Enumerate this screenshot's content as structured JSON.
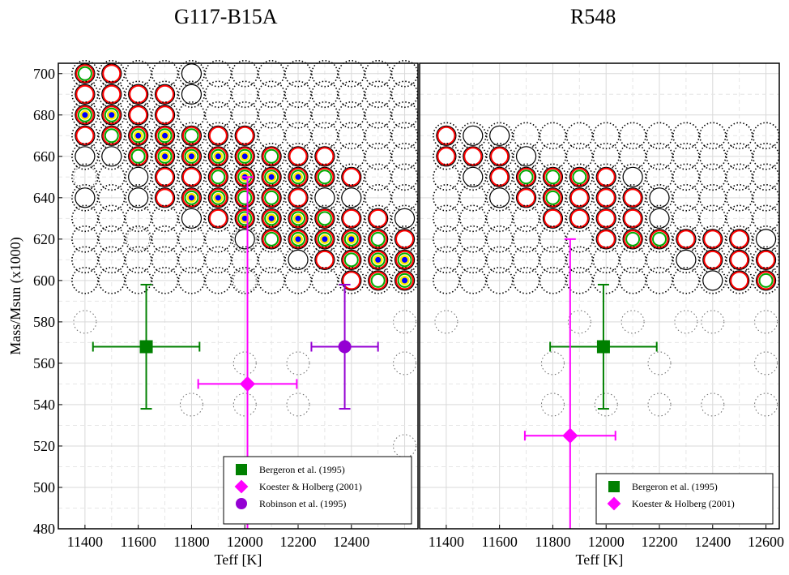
{
  "titles": {
    "left": "G117-B15A",
    "right": "R548"
  },
  "chart_data": [
    {
      "type": "scatter",
      "title": "G117-B15A",
      "xlabel": "Teff [K]",
      "ylabel": "Mass/Msun (x1000)",
      "xlim": [
        11300,
        12650
      ],
      "ylim": [
        480,
        705
      ],
      "xticks": [
        11400,
        11600,
        11800,
        12000,
        12200,
        12400
      ],
      "yticks": [
        480,
        500,
        520,
        540,
        560,
        580,
        600,
        620,
        640,
        660,
        680,
        700
      ],
      "grid": true,
      "legend_position": "bottom-right",
      "model_grid": {
        "x": [
          11400,
          11500,
          11600,
          11700,
          11800,
          11900,
          12000,
          12100,
          12200,
          12300,
          12400,
          12500,
          12600
        ],
        "rows": [
          {
            "mass": 700,
            "levels": [
              4,
              3,
              0,
              0,
              1,
              0,
              0,
              0,
              0,
              0,
              0,
              0,
              0
            ]
          },
          {
            "mass": 690,
            "levels": [
              3,
              3,
              3,
              3,
              2,
              0,
              0,
              0,
              0,
              0,
              0,
              0,
              0
            ]
          },
          {
            "mass": 680,
            "levels": [
              5,
              5,
              3,
              3,
              0,
              0,
              0,
              0,
              0,
              0,
              0,
              0,
              0
            ]
          },
          {
            "mass": 670,
            "levels": [
              3,
              4,
              5,
              5,
              4,
              3,
              3,
              0,
              0,
              0,
              0,
              0,
              0
            ]
          },
          {
            "mass": 660,
            "levels": [
              2,
              2,
              4,
              5,
              5,
              5,
              5,
              4,
              3,
              3,
              0,
              0,
              0
            ]
          },
          {
            "mass": 650,
            "levels": [
              0,
              0,
              1,
              3,
              3,
              4,
              5,
              5,
              5,
              4,
              3,
              0,
              0
            ]
          },
          {
            "mass": 640,
            "levels": [
              1,
              0,
              1,
              3,
              5,
              5,
              4,
              4,
              3,
              2,
              1,
              0,
              0
            ]
          },
          {
            "mass": 630,
            "levels": [
              0,
              0,
              0,
              0,
              1,
              3,
              5,
              5,
              5,
              4,
              3,
              3,
              1
            ]
          },
          {
            "mass": 620,
            "levels": [
              0,
              0,
              0,
              0,
              0,
              0,
              1,
              4,
              5,
              5,
              5,
              4,
              3
            ]
          },
          {
            "mass": 610,
            "levels": [
              0,
              0,
              0,
              0,
              0,
              0,
              0,
              0,
              1,
              3,
              4,
              5,
              5
            ]
          },
          {
            "mass": 600,
            "levels": [
              0,
              0,
              0,
              0,
              0,
              0,
              0,
              0,
              0,
              0,
              3,
              4,
              5
            ]
          }
        ],
        "faint_points": [
          [
            11600,
            620
          ],
          [
            12000,
            620
          ],
          [
            12000,
            600
          ],
          [
            12000,
            560
          ],
          [
            12000,
            540
          ],
          [
            11400,
            580
          ],
          [
            12600,
            580
          ],
          [
            11800,
            540
          ],
          [
            12200,
            560
          ],
          [
            12200,
            540
          ],
          [
            12600,
            560
          ],
          [
            12600,
            520
          ],
          [
            11400,
            650
          ]
        ]
      },
      "series": [
        {
          "name": "Bergeron et al. (1995)",
          "marker": "square",
          "color": "#008000",
          "x": 11630,
          "y": 568,
          "xerr": 200,
          "yerr": 30
        },
        {
          "name": "Koester & Holberg (2001)",
          "marker": "diamond",
          "color": "#ff00ff",
          "x": 12010,
          "y": 550,
          "xerr": 185,
          "yerr": 100
        },
        {
          "name": "Robinson et al. (1995)",
          "marker": "circle",
          "color": "#9400d3",
          "x": 12375,
          "y": 568,
          "xerr": 125,
          "yerr": 30
        }
      ]
    },
    {
      "type": "scatter",
      "title": "R548",
      "xlabel": "Teff [K]",
      "ylabel": "",
      "xlim": [
        11300,
        12650
      ],
      "ylim": [
        480,
        705
      ],
      "xticks": [
        11400,
        11600,
        11800,
        12000,
        12200,
        12400,
        12600
      ],
      "grid": true,
      "legend_position": "bottom-right",
      "model_grid": {
        "x": [
          11400,
          11500,
          11600,
          11700,
          11800,
          11900,
          12000,
          12100,
          12200,
          12300,
          12400,
          12500,
          12600
        ],
        "rows": [
          {
            "mass": 670,
            "levels": [
              3,
              2,
              2,
              0,
              0,
              0,
              0,
              0,
              0,
              0,
              0,
              0,
              0
            ]
          },
          {
            "mass": 660,
            "levels": [
              3,
              3,
              3,
              2,
              0,
              0,
              0,
              0,
              0,
              0,
              0,
              0,
              0
            ]
          },
          {
            "mass": 650,
            "levels": [
              0,
              1,
              3,
              4,
              4,
              4,
              3,
              2,
              0,
              0,
              0,
              0,
              0
            ]
          },
          {
            "mass": 640,
            "levels": [
              0,
              0,
              2,
              3,
              4,
              3,
              3,
              3,
              2,
              0,
              0,
              0,
              0
            ]
          },
          {
            "mass": 630,
            "levels": [
              0,
              0,
              0,
              0,
              3,
              3,
              3,
              3,
              2,
              0,
              0,
              0,
              0
            ]
          },
          {
            "mass": 620,
            "levels": [
              0,
              0,
              0,
              0,
              0,
              0,
              3,
              4,
              4,
              3,
              3,
              3,
              2
            ]
          },
          {
            "mass": 610,
            "levels": [
              0,
              0,
              0,
              0,
              0,
              0,
              0,
              0,
              0,
              2,
              3,
              3,
              3
            ]
          },
          {
            "mass": 600,
            "levels": [
              0,
              0,
              0,
              0,
              0,
              0,
              0,
              0,
              0,
              0,
              2,
              3,
              4
            ]
          }
        ],
        "faint_points": [
          [
            11400,
            580
          ],
          [
            11900,
            580
          ],
          [
            12100,
            580
          ],
          [
            12300,
            580
          ],
          [
            12400,
            580
          ],
          [
            12600,
            580
          ],
          [
            11800,
            560
          ],
          [
            12200,
            560
          ],
          [
            12600,
            560
          ],
          [
            11800,
            540
          ],
          [
            12000,
            540
          ],
          [
            12200,
            540
          ],
          [
            12400,
            540
          ],
          [
            12600,
            540
          ]
        ]
      },
      "series": [
        {
          "name": "Bergeron et al. (1995)",
          "marker": "square",
          "color": "#008000",
          "x": 11990,
          "y": 568,
          "xerr": 200,
          "yerr": 30
        },
        {
          "name": "Koester & Holberg (2001)",
          "marker": "diamond",
          "color": "#ff00ff",
          "x": 11865,
          "y": 525,
          "xerr": 170,
          "yerr": 95
        }
      ]
    }
  ]
}
